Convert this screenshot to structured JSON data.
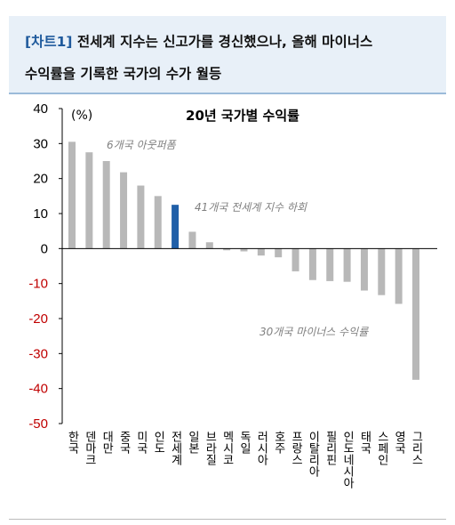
{
  "header": {
    "tag": "[차트1]",
    "line1": "전세계 지수는 신고가를 경신했으나, 올해 마이너스",
    "line2": "수익률을 기록한 국가의 수가 월등"
  },
  "chart_data": {
    "type": "bar",
    "title": "20년 국가별 수익률",
    "ylabel": "(%)",
    "ylim": [
      -50,
      40
    ],
    "ytick_step": 10,
    "grid": false,
    "categories": [
      "한국",
      "덴마크",
      "대만",
      "중국",
      "미국",
      "인도",
      "전세계",
      "일본",
      "브라질",
      "멕시코",
      "독일",
      "러시아",
      "호주",
      "프랑스",
      "이탈리아",
      "필리핀",
      "인도네시아",
      "태국",
      "스페인",
      "영국",
      "그리스"
    ],
    "values": [
      30.5,
      27.5,
      25,
      21.8,
      18,
      15,
      12.5,
      4.8,
      1.8,
      -0.5,
      -0.8,
      -2,
      -2.5,
      -6.5,
      -9,
      -9.3,
      -9.5,
      -12,
      -13.3,
      -15.8,
      -37.5
    ],
    "highlight_category": "전세계",
    "colors": {
      "bar": "#b8b8b8",
      "highlight": "#1f5fa8",
      "negative_tick": "#c00000",
      "annotation": "#808080"
    },
    "annotations": [
      "6개국 아웃퍼폼",
      "41개국 전세계 지수 하회",
      "30개국 마이너스 수익률"
    ]
  }
}
